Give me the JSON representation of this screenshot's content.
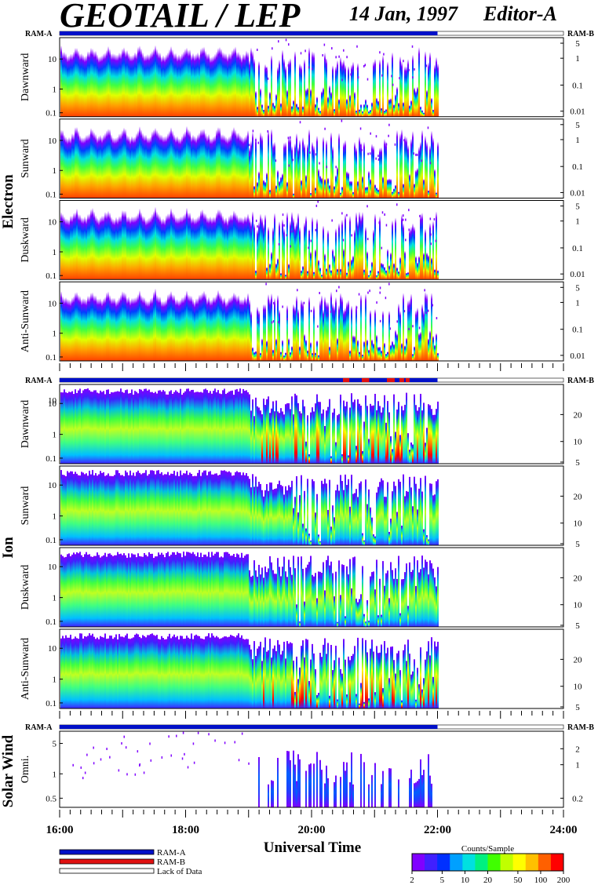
{
  "chart_data": {
    "type": "heatmap",
    "title": "GEOTAIL / LEP",
    "date": "14 Jan, 1997",
    "editor": "Editor-A",
    "xlabel": "Universal Time",
    "x_ticks": [
      "16:00",
      "18:00",
      "20:00",
      "22:00",
      "24:00"
    ],
    "x_range_hours": [
      16,
      24
    ],
    "data_end_hour": 22.0,
    "ram_labels": {
      "left": "RAM-A",
      "right": "RAM-B"
    },
    "groups": [
      {
        "name": "Electron",
        "y_left_ticks": [
          "10",
          "1",
          "0.1"
        ],
        "y_right_ticks": [
          "5",
          "1",
          "0.1",
          "0.01"
        ],
        "panels": [
          {
            "label": "Dawnward"
          },
          {
            "label": "Sunward"
          },
          {
            "label": "Duskward"
          },
          {
            "label": "Anti-Sunward"
          }
        ]
      },
      {
        "name": "Ion",
        "y_left_ticks": [
          "10",
          "1",
          "0.1"
        ],
        "y_left_top_tick": "10",
        "y_right_ticks": [
          "20",
          "10",
          "5"
        ],
        "panels": [
          {
            "label": "Dawnward"
          },
          {
            "label": "Sunward"
          },
          {
            "label": "Duskward"
          },
          {
            "label": "Anti-Sunward"
          }
        ]
      },
      {
        "name": "Solar Wind",
        "y_left_ticks": [
          "5",
          "1",
          "0.5"
        ],
        "y_right_ticks": [
          "2",
          "1",
          "0.2"
        ],
        "panels": [
          {
            "label": "Omni."
          }
        ]
      }
    ],
    "legend": {
      "items": [
        {
          "label": "RAM-A",
          "color": "#0010c8"
        },
        {
          "label": "RAM-B",
          "color": "#e01010"
        },
        {
          "label": "Lack of Data",
          "color": "#ffffff"
        }
      ]
    },
    "colorbar": {
      "title": "Counts/Sample",
      "ticks": [
        "2",
        "5",
        "10",
        "20",
        "50",
        "100",
        "200"
      ],
      "colors": [
        "#8000ff",
        "#4020ff",
        "#0030ff",
        "#00a0ff",
        "#00e0e0",
        "#00f080",
        "#40ff00",
        "#c0ff00",
        "#ffff00",
        "#ffc000",
        "#ff6000",
        "#ff0000"
      ]
    }
  }
}
